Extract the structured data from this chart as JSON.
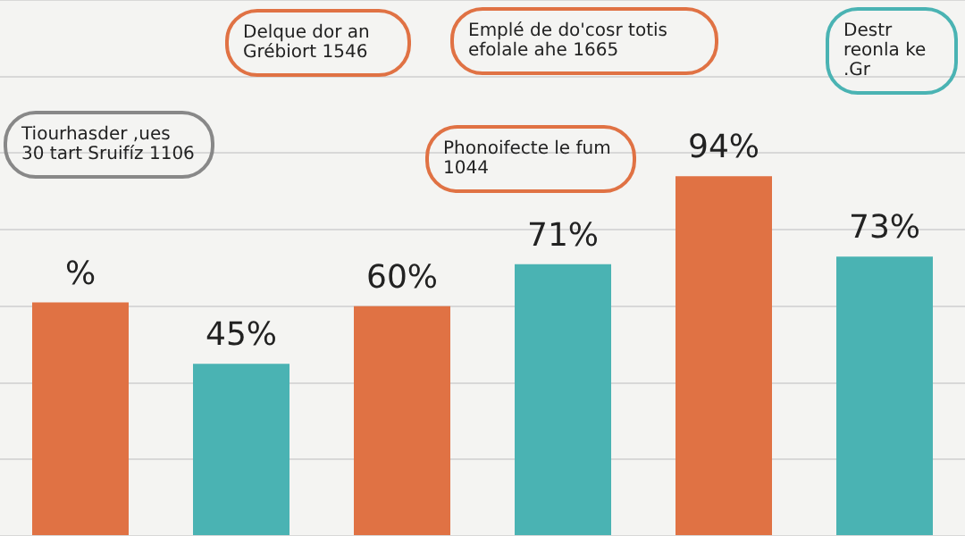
{
  "chart_data": {
    "type": "bar",
    "categories": [
      null,
      null,
      null,
      null,
      null,
      null
    ],
    "values": [
      61,
      45,
      60,
      71,
      94,
      73
    ],
    "ylim": [
      0,
      140
    ],
    "colors": [
      "#e07244",
      "#4ab3b3",
      "#e07244",
      "#4ab3b3",
      "#e07244",
      "#4ab3b3"
    ],
    "value_labels": [
      "%",
      "45%",
      "60%",
      "71%",
      "94%",
      "73%"
    ],
    "annotations": [
      "Tiourhasder ,ues 30 tart Sruifíz 1106",
      "Delque dor an Grébiort 1546",
      "Emplé de do'cosr totis efolale ahe 1665",
      "Phonoifecte le fum 1044",
      "Destr reonla ke .Gr"
    ],
    "grid": true,
    "legend": false,
    "tick_labels": false
  }
}
